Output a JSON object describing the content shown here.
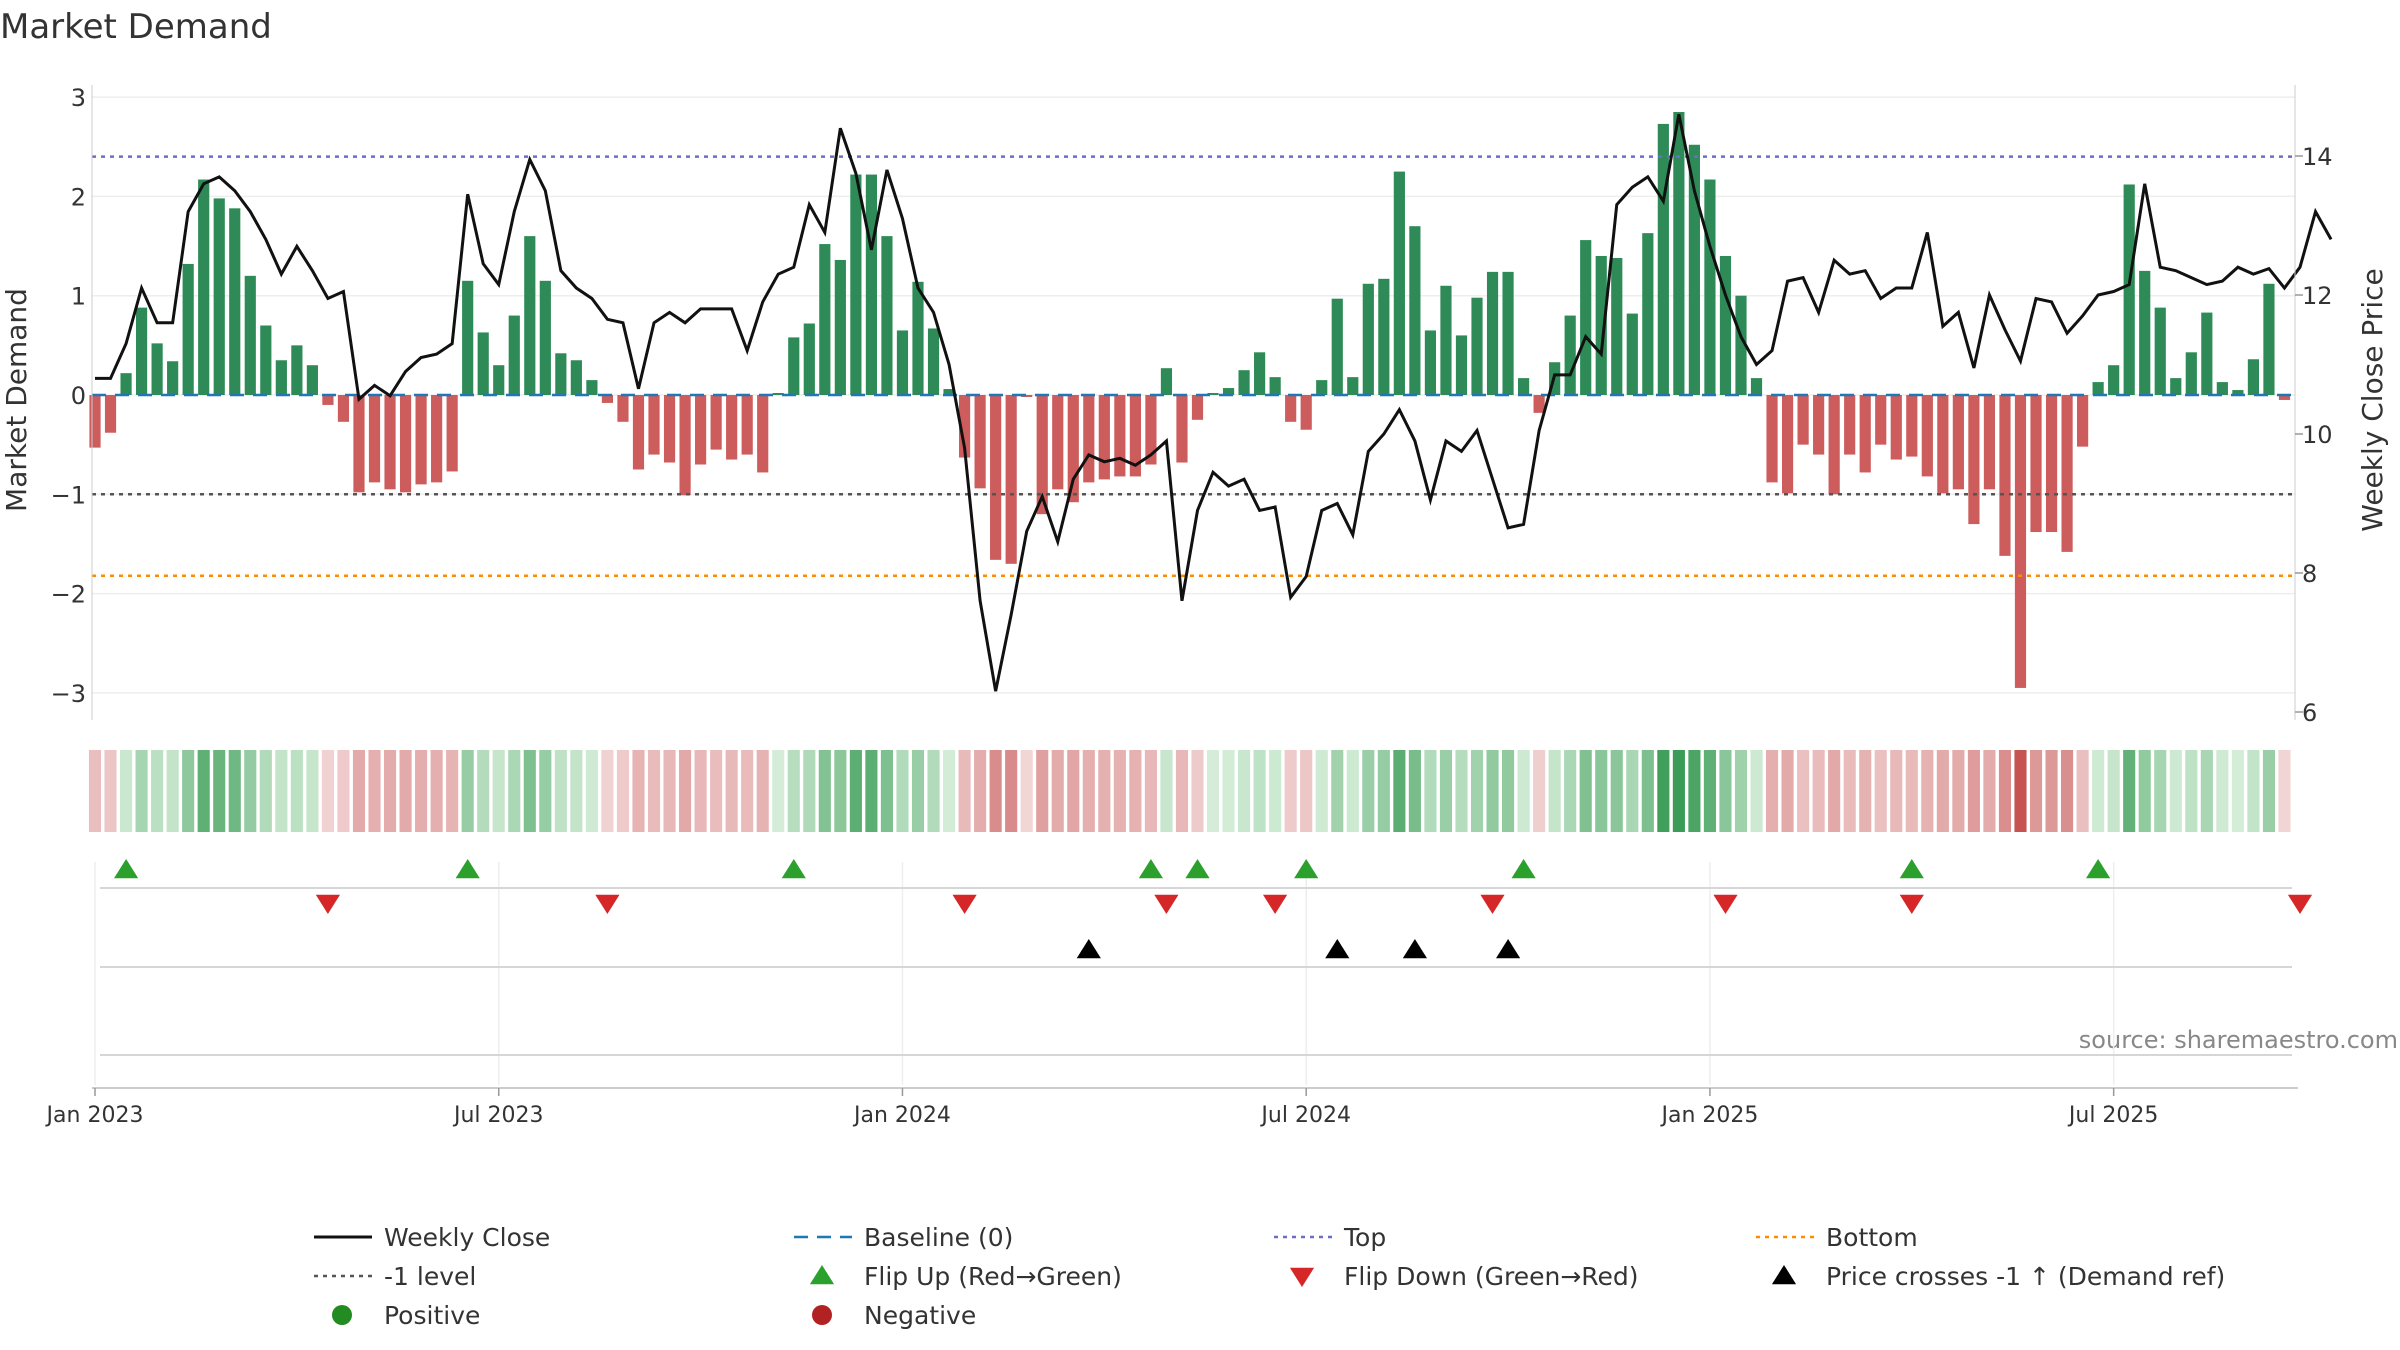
{
  "chart_data": {
    "type": "bar",
    "title": "Market Demand",
    "ylabel": "Market Demand",
    "y2label": "Weekly Close Price",
    "ylim": [
      -3.3,
      3.2
    ],
    "y2lim": [
      6,
      15
    ],
    "yticks": [
      3,
      2,
      1,
      0,
      -1,
      -2,
      -3
    ],
    "yticklabels": [
      "3",
      "2",
      "1",
      "0",
      "−1",
      "−2",
      "−3"
    ],
    "y2ticks": [
      14,
      12,
      10,
      8,
      6
    ],
    "xticks": [
      {
        "label": "Jan 2023",
        "week": 1
      },
      {
        "label": "Jul 2023",
        "week": 27
      },
      {
        "label": "Jan 2024",
        "week": 53
      },
      {
        "label": "Jul 2024",
        "week": 79
      },
      {
        "label": "Jan 2025",
        "week": 105
      },
      {
        "label": "Jul 2025",
        "week": 131
      }
    ],
    "weeks_total": 143,
    "reference_lines": {
      "top": 2.4,
      "minus_one": -1.0,
      "bottom": -1.82,
      "baseline": 0
    },
    "demand": [
      -0.53,
      -0.38,
      0.22,
      0.88,
      0.52,
      0.34,
      1.32,
      2.17,
      1.98,
      1.88,
      1.2,
      0.7,
      0.35,
      0.5,
      0.3,
      -0.1,
      -0.27,
      -0.98,
      -0.88,
      -0.95,
      -0.98,
      -0.9,
      -0.88,
      -0.77,
      1.15,
      0.63,
      0.3,
      0.8,
      1.6,
      1.15,
      0.42,
      0.35,
      0.15,
      -0.08,
      -0.27,
      -0.75,
      -0.6,
      -0.68,
      -1.01,
      -0.7,
      -0.55,
      -0.65,
      -0.6,
      -0.78,
      0.02,
      0.58,
      0.72,
      1.52,
      1.36,
      2.22,
      2.22,
      1.6,
      0.65,
      1.14,
      0.67,
      0.06,
      -0.63,
      -0.94,
      -1.66,
      -1.7,
      -0.02,
      -1.2,
      -0.95,
      -1.08,
      -0.88,
      -0.85,
      -0.82,
      -0.82,
      -0.7,
      0.27,
      -0.68,
      -0.25,
      0.02,
      0.07,
      0.25,
      0.43,
      0.18,
      -0.27,
      -0.35,
      0.15,
      0.97,
      0.18,
      1.12,
      1.17,
      2.25,
      1.7,
      0.65,
      1.1,
      0.6,
      0.98,
      1.24,
      1.24,
      0.17,
      -0.18,
      0.33,
      0.8,
      1.56,
      1.4,
      1.38,
      0.82,
      1.63,
      2.73,
      2.85,
      2.52,
      2.17,
      1.4,
      1.0,
      0.17,
      -0.88,
      -0.99,
      -0.5,
      -0.6,
      -1.0,
      -0.6,
      -0.78,
      -0.5,
      -0.65,
      -0.62,
      -0.82,
      -0.99,
      -0.95,
      -1.3,
      -0.95,
      -1.62,
      -2.95,
      -1.38,
      -1.38,
      -1.58,
      -0.52,
      0.13,
      0.3,
      2.12,
      1.25,
      0.88,
      0.17,
      0.43,
      0.83,
      0.13,
      0.05,
      0.36,
      1.12,
      -0.05
    ],
    "weekly_close": [
      10.8,
      10.8,
      11.3,
      12.1,
      11.6,
      11.6,
      13.2,
      13.6,
      13.7,
      13.5,
      13.2,
      12.8,
      12.3,
      12.7,
      12.35,
      11.95,
      12.05,
      10.5,
      10.7,
      10.55,
      10.9,
      11.1,
      11.15,
      11.3,
      13.45,
      12.45,
      12.15,
      13.2,
      13.95,
      13.5,
      12.35,
      12.1,
      11.95,
      11.65,
      11.6,
      10.65,
      11.6,
      11.75,
      11.6,
      11.8,
      11.8,
      11.8,
      11.2,
      11.9,
      12.3,
      12.4,
      13.3,
      12.9,
      14.4,
      13.75,
      12.65,
      13.8,
      13.1,
      12.1,
      11.75,
      11.0,
      9.8,
      7.6,
      6.3,
      7.4,
      8.6,
      9.1,
      8.45,
      9.35,
      9.7,
      9.6,
      9.65,
      9.55,
      9.7,
      9.9,
      7.6,
      8.9,
      9.45,
      9.25,
      9.35,
      8.9,
      8.95,
      7.65,
      7.95,
      8.9,
      9.0,
      8.55,
      9.75,
      10.0,
      10.35,
      9.9,
      9.05,
      9.9,
      9.75,
      10.05,
      9.35,
      8.65,
      8.7,
      10.05,
      10.85,
      10.85,
      11.4,
      11.15,
      13.3,
      13.55,
      13.7,
      13.35,
      14.6,
      13.5,
      12.7,
      12.0,
      11.4,
      11.0,
      11.2,
      12.2,
      12.25,
      11.75,
      12.5,
      12.3,
      12.35,
      11.95,
      12.1,
      12.1,
      12.9,
      11.55,
      11.75,
      10.95,
      12.0,
      11.5,
      11.05,
      11.95,
      11.9,
      11.45,
      11.7,
      12.0,
      12.05,
      12.15,
      13.6,
      12.4,
      12.35,
      12.25,
      12.15,
      12.2,
      12.4,
      12.3,
      12.38,
      12.1,
      12.4,
      13.2,
      12.8
    ],
    "flip_up_weeks": [
      3,
      25,
      46,
      69,
      72,
      79,
      93,
      118,
      130
    ],
    "flip_down_weeks": [
      16,
      34,
      57,
      70,
      77,
      91,
      106,
      118,
      143
    ],
    "price_cross_weeks": [
      65,
      81,
      86,
      92
    ],
    "legend": [
      {
        "label": "Weekly Close",
        "symbol": "line",
        "color": "#111111"
      },
      {
        "label": "Baseline (0)",
        "symbol": "dash",
        "color": "#1f77b4"
      },
      {
        "label": "Top",
        "symbol": "dot",
        "color": "#6c6cc9"
      },
      {
        "label": "Bottom",
        "symbol": "dot",
        "color": "#ff8c00"
      },
      {
        "label": "-1 level",
        "symbol": "dot",
        "color": "#555555"
      },
      {
        "label": "Flip Up (Red→Green)",
        "symbol": "tri-up",
        "color": "#2ca02c"
      },
      {
        "label": "Flip Down (Green→Red)",
        "symbol": "tri-down",
        "color": "#d62728"
      },
      {
        "label": "Price crosses -1 ↑ (Demand ref)",
        "symbol": "tri-up",
        "color": "#000000"
      },
      {
        "label": "Positive",
        "symbol": "circle",
        "color": "#228b22"
      },
      {
        "label": "Negative",
        "symbol": "circle",
        "color": "#b22222"
      }
    ],
    "legend_position": "bottom",
    "source": "source: sharemaestro.com",
    "colors": {
      "positive_bar": "#2e8b57",
      "negative_bar": "#cd5c5c",
      "price_line": "#111111",
      "baseline": "#1f77b4",
      "top_line": "#6c6cc9",
      "bottom_line": "#ff8c00",
      "minus_one_line": "#555555",
      "flip_up": "#2ca02c",
      "flip_down": "#d62728",
      "price_cross": "#000000"
    }
  }
}
